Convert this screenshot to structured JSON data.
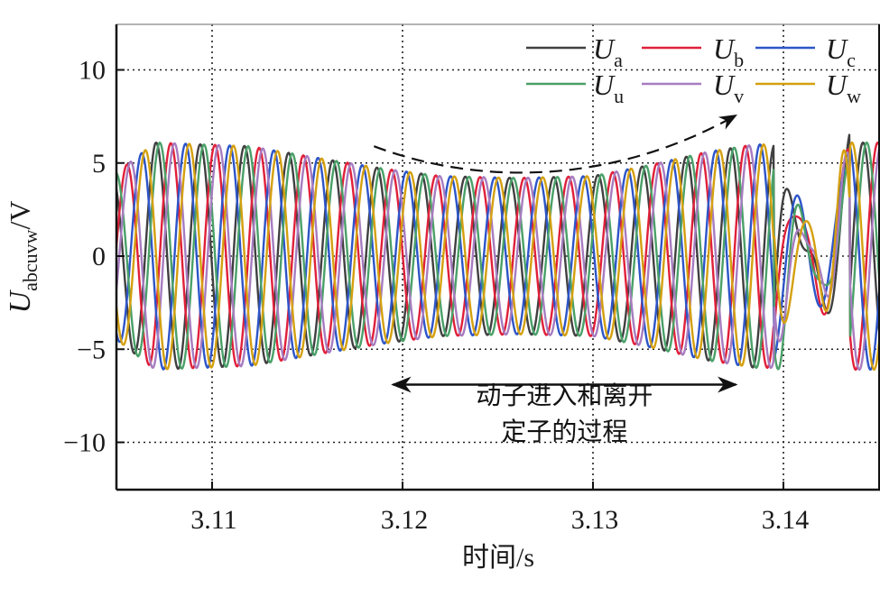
{
  "chart_data": {
    "type": "line",
    "title": "",
    "xlabel": "时间/s",
    "ylabel": "U_abcuvw/V",
    "ylabel_main": "U",
    "ylabel_sub": "abcuvw",
    "ylabel_unit": "/V",
    "xlim": [
      3.105,
      3.145
    ],
    "ylim": [
      -12.5,
      12.5
    ],
    "x_ticks": [
      3.11,
      3.12,
      3.13,
      3.14
    ],
    "x_tick_labels": [
      "3.11",
      "3.12",
      "3.13",
      "3.14"
    ],
    "y_ticks": [
      10,
      5,
      0,
      -5,
      -10
    ],
    "y_tick_labels": [
      "10",
      "5",
      "0",
      "−5",
      "−10"
    ],
    "grid": true,
    "grid_style": "dotted",
    "legend_position": "upper right",
    "signal_period_s": 0.00232,
    "envelope": {
      "t": [
        3.105,
        3.107,
        3.112,
        3.116,
        3.119,
        3.122,
        3.126,
        3.13,
        3.133,
        3.136,
        3.1385,
        3.1395
      ],
      "amplitude": [
        4.5,
        6.1,
        5.9,
        5.2,
        4.7,
        4.3,
        4.2,
        4.3,
        4.9,
        5.6,
        6.0,
        6.0
      ]
    },
    "disturbance_region": {
      "t_start": 3.1395,
      "t_end": 3.1435,
      "min_amplitude": 1.6,
      "description": "amplitude collapses then recovers to ~6 V"
    },
    "series": [
      {
        "name": "U_a",
        "label_main": "U",
        "label_sub": "a",
        "color": "#404040",
        "phase_deg": 0
      },
      {
        "name": "U_b",
        "label_main": "U",
        "label_sub": "b",
        "color": "#e0203a",
        "phase_deg": -120
      },
      {
        "name": "U_c",
        "label_main": "U",
        "label_sub": "c",
        "color": "#2d55c8",
        "phase_deg": 120
      },
      {
        "name": "U_u",
        "label_main": "U",
        "label_sub": "u",
        "color": "#4aa068",
        "phase_deg": -30
      },
      {
        "name": "U_v",
        "label_main": "U",
        "label_sub": "v",
        "color": "#a77cc0",
        "phase_deg": -150
      },
      {
        "name": "U_w",
        "label_main": "U",
        "label_sub": "w",
        "color": "#d4a010",
        "phase_deg": 90
      }
    ],
    "annotations": [
      {
        "type": "double-arrow",
        "x_start": 3.1195,
        "x_end": 3.1375,
        "y": -6.9,
        "text_line1": "动子进入和离开",
        "text_line2": "定子的过程"
      },
      {
        "type": "dashed-curved-arrow",
        "points": [
          [
            3.1185,
            5.9
          ],
          [
            3.124,
            4.5
          ],
          [
            3.131,
            4.4
          ],
          [
            3.1375,
            6.2
          ]
        ],
        "description": "envelope dip trend"
      }
    ]
  }
}
